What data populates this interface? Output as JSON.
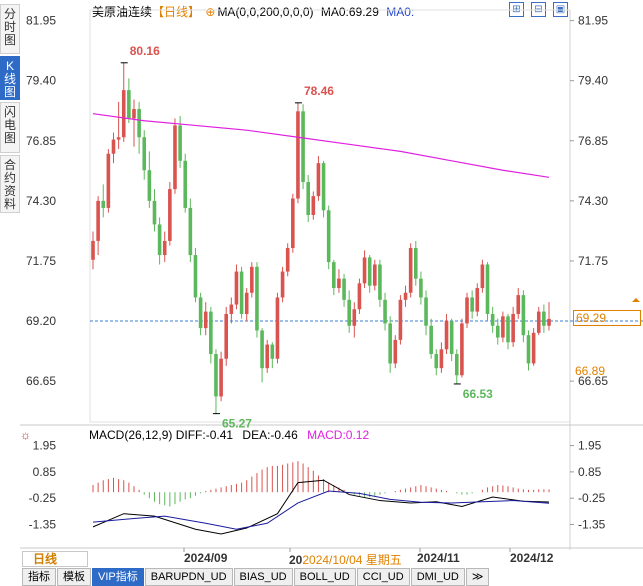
{
  "side_tabs": [
    {
      "label": "分时图",
      "active": false
    },
    {
      "label": "K线图",
      "active": true
    },
    {
      "label": "闪电图",
      "active": false
    },
    {
      "label": "合约资料",
      "active": false
    }
  ],
  "header": {
    "title": "美原油连续",
    "period": "【日线】",
    "ma_label": "MA(0,0,200,0,0,0)",
    "ma_value": "MA0:69.29",
    "ma_value2": "MA0:"
  },
  "header_icons": [
    "zoom-icon",
    "expand-icon",
    "fullscreen-icon",
    "close-icon"
  ],
  "price_axis_ticks": [
    "81.95",
    "79.40",
    "76.85",
    "74.30",
    "71.75",
    "69.20",
    "66.65"
  ],
  "current_price": "69.29",
  "ref_price": "66.89",
  "ref_tick_hidden": "69.20",
  "annotations": {
    "high1": "80.16",
    "high2": "78.46",
    "low1": "65.27",
    "low2": "66.53"
  },
  "macd": {
    "label": "MACD(26,12,9)",
    "diff": "DIFF:-0.41",
    "dea": "DEA:-0.46",
    "macd": "MACD:0.12",
    "ticks": [
      "1.95",
      "0.85",
      "-0.25",
      "-1.35"
    ]
  },
  "date_axis": {
    "labels": [
      "2024/09",
      "2024/11",
      "2024/12"
    ],
    "cursor": "2024/10/04 星期五",
    "cursor_prefix": "20"
  },
  "period_button": "日线",
  "toolbar_tabs": [
    "指标",
    "模板",
    "VIP指标",
    "BARUPDN_UD",
    "BIAS_UD",
    "BOLL_UD",
    "CCI_UD",
    "DMI_UD",
    "≫"
  ],
  "colors": {
    "up": "#d9534f",
    "down": "#5cb85c",
    "ma": "#e020e0",
    "diff": "#000000",
    "dea": "#1a1aa0"
  },
  "chart_data": {
    "type": "candlestick",
    "title": "",
    "xlabel": "",
    "ylabel": "",
    "ylim": [
      65.0,
      82.4
    ],
    "ohlc": [
      [
        71.8,
        73.0,
        71.4,
        72.6
      ],
      [
        72.6,
        74.5,
        72.0,
        74.3
      ],
      [
        74.3,
        75.0,
        73.6,
        74.0
      ],
      [
        74.0,
        76.5,
        73.8,
        76.3
      ],
      [
        76.3,
        77.2,
        75.9,
        76.9
      ],
      [
        76.9,
        78.5,
        76.5,
        77.0
      ],
      [
        77.0,
        80.16,
        76.8,
        79.0
      ],
      [
        79.0,
        79.5,
        77.6,
        77.8
      ],
      [
        77.8,
        78.6,
        76.6,
        78.2
      ],
      [
        78.2,
        78.5,
        76.3,
        77.0
      ],
      [
        77.0,
        77.3,
        75.2,
        75.6
      ],
      [
        75.6,
        76.4,
        74.0,
        74.3
      ],
      [
        74.3,
        74.8,
        73.0,
        73.3
      ],
      [
        73.3,
        73.6,
        71.6,
        72.0
      ],
      [
        72.0,
        73.0,
        71.7,
        72.6
      ],
      [
        72.6,
        75.1,
        72.4,
        74.8
      ],
      [
        74.8,
        77.8,
        74.6,
        77.5
      ],
      [
        77.5,
        77.9,
        75.7,
        76.0
      ],
      [
        76.0,
        76.3,
        73.8,
        74.0
      ],
      [
        74.0,
        74.4,
        71.7,
        72.0
      ],
      [
        72.0,
        72.3,
        70.0,
        70.2
      ],
      [
        70.2,
        70.4,
        68.6,
        68.9
      ],
      [
        68.9,
        70.0,
        68.6,
        69.6
      ],
      [
        69.6,
        69.8,
        67.4,
        67.8
      ],
      [
        67.8,
        68.0,
        65.27,
        66.0
      ],
      [
        66.0,
        67.9,
        65.8,
        67.6
      ],
      [
        67.6,
        69.8,
        67.3,
        69.5
      ],
      [
        69.5,
        70.2,
        69.1,
        69.9
      ],
      [
        69.9,
        71.6,
        69.7,
        71.3
      ],
      [
        71.3,
        71.5,
        69.3,
        69.5
      ],
      [
        69.5,
        70.6,
        69.2,
        70.4
      ],
      [
        70.4,
        71.7,
        70.2,
        71.5
      ],
      [
        71.5,
        71.7,
        68.5,
        68.8
      ],
      [
        68.8,
        68.9,
        66.6,
        67.2
      ],
      [
        67.2,
        68.4,
        67.0,
        68.2
      ],
      [
        68.2,
        68.3,
        67.2,
        67.6
      ],
      [
        67.6,
        70.4,
        67.4,
        70.2
      ],
      [
        70.2,
        71.5,
        70.0,
        71.3
      ],
      [
        71.3,
        72.5,
        71.1,
        72.3
      ],
      [
        72.3,
        74.6,
        72.1,
        74.4
      ],
      [
        74.4,
        78.46,
        74.2,
        78.1
      ],
      [
        78.1,
        78.4,
        74.8,
        75.1
      ],
      [
        75.1,
        75.4,
        73.4,
        73.7
      ],
      [
        73.7,
        74.7,
        73.5,
        74.5
      ],
      [
        74.5,
        76.2,
        74.3,
        75.9
      ],
      [
        75.9,
        76.0,
        73.6,
        73.9
      ],
      [
        73.9,
        74.1,
        71.4,
        71.7
      ],
      [
        71.7,
        71.8,
        70.3,
        70.6
      ],
      [
        70.6,
        71.4,
        70.4,
        71.0
      ],
      [
        71.0,
        71.2,
        69.8,
        70.1
      ],
      [
        70.1,
        70.5,
        68.7,
        69.0
      ],
      [
        69.0,
        70.0,
        68.5,
        69.7
      ],
      [
        69.7,
        71.0,
        69.5,
        70.8
      ],
      [
        70.8,
        72.2,
        70.6,
        71.9
      ],
      [
        71.9,
        72.0,
        70.4,
        70.7
      ],
      [
        70.7,
        71.8,
        70.5,
        71.6
      ],
      [
        71.6,
        71.8,
        69.8,
        70.1
      ],
      [
        70.1,
        70.4,
        68.8,
        69.1
      ],
      [
        69.1,
        69.4,
        67.0,
        67.4
      ],
      [
        67.4,
        68.6,
        67.2,
        68.4
      ],
      [
        68.4,
        70.3,
        68.2,
        70.1
      ],
      [
        70.1,
        70.7,
        69.8,
        70.4
      ],
      [
        70.4,
        72.5,
        70.2,
        72.3
      ],
      [
        72.3,
        72.6,
        70.7,
        71.0
      ],
      [
        71.0,
        71.3,
        69.9,
        70.2
      ],
      [
        70.2,
        70.5,
        68.6,
        69.0
      ],
      [
        69.0,
        69.3,
        67.6,
        67.8
      ],
      [
        67.8,
        68.0,
        66.9,
        67.2
      ],
      [
        67.2,
        68.3,
        67.0,
        68.0
      ],
      [
        68.0,
        69.5,
        67.8,
        69.2
      ],
      [
        69.2,
        69.3,
        67.5,
        67.8
      ],
      [
        67.8,
        68.0,
        66.53,
        66.9
      ],
      [
        66.9,
        69.3,
        66.8,
        69.1
      ],
      [
        69.1,
        70.4,
        68.9,
        70.2
      ],
      [
        70.2,
        70.5,
        69.3,
        69.6
      ],
      [
        69.6,
        70.8,
        69.4,
        70.6
      ],
      [
        70.6,
        71.8,
        70.4,
        71.6
      ],
      [
        71.6,
        71.7,
        69.2,
        69.5
      ],
      [
        69.5,
        69.8,
        68.7,
        69.0
      ],
      [
        69.0,
        69.3,
        68.2,
        68.5
      ],
      [
        68.5,
        69.6,
        68.3,
        69.4
      ],
      [
        69.4,
        69.5,
        68.0,
        68.3
      ],
      [
        68.3,
        69.8,
        68.1,
        69.5
      ],
      [
        69.5,
        70.6,
        69.3,
        70.3
      ],
      [
        70.3,
        70.5,
        68.3,
        68.6
      ],
      [
        68.6,
        68.8,
        67.1,
        67.4
      ],
      [
        67.4,
        68.9,
        67.3,
        68.7
      ],
      [
        68.7,
        69.8,
        68.6,
        69.6
      ],
      [
        69.6,
        69.9,
        68.7,
        69.0
      ],
      [
        69.0,
        70.0,
        68.8,
        69.29
      ]
    ],
    "ma200": [
      [
        0,
        78.0
      ],
      [
        10,
        77.7
      ],
      [
        20,
        77.5
      ],
      [
        30,
        77.3
      ],
      [
        40,
        77.0
      ],
      [
        50,
        76.7
      ],
      [
        60,
        76.4
      ],
      [
        70,
        76.0
      ],
      [
        80,
        75.6
      ],
      [
        89,
        75.3
      ]
    ],
    "macd": {
      "diff": [
        [
          0,
          -1.45
        ],
        [
          6,
          -0.9
        ],
        [
          12,
          -1.0
        ],
        [
          20,
          -1.55
        ],
        [
          25,
          -1.75
        ],
        [
          30,
          -1.5
        ],
        [
          36,
          -0.9
        ],
        [
          40,
          0.4
        ],
        [
          45,
          0.5
        ],
        [
          50,
          -0.1
        ],
        [
          56,
          -0.35
        ],
        [
          62,
          -0.45
        ],
        [
          67,
          -0.4
        ],
        [
          72,
          -0.6
        ],
        [
          78,
          -0.2
        ],
        [
          84,
          -0.38
        ],
        [
          89,
          -0.41
        ]
      ],
      "dea": [
        [
          0,
          -1.25
        ],
        [
          8,
          -1.1
        ],
        [
          14,
          -1.0
        ],
        [
          22,
          -1.3
        ],
        [
          28,
          -1.55
        ],
        [
          34,
          -1.3
        ],
        [
          40,
          -0.45
        ],
        [
          46,
          0.05
        ],
        [
          52,
          -0.05
        ],
        [
          58,
          -0.3
        ],
        [
          64,
          -0.42
        ],
        [
          70,
          -0.45
        ],
        [
          76,
          -0.4
        ],
        [
          82,
          -0.35
        ],
        [
          89,
          -0.46
        ]
      ],
      "hist": [
        0.3,
        0.4,
        0.5,
        0.55,
        0.6,
        0.55,
        0.5,
        0.4,
        0.25,
        0.1,
        -0.1,
        -0.25,
        -0.4,
        -0.5,
        -0.55,
        -0.6,
        -0.5,
        -0.4,
        -0.3,
        -0.25,
        -0.15,
        -0.05,
        0.05,
        0.1,
        0.15,
        0.2,
        0.25,
        0.3,
        0.35,
        0.4,
        0.5,
        0.65,
        0.8,
        0.95,
        1.05,
        1.1,
        1.1,
        1.15,
        1.2,
        1.25,
        1.3,
        1.2,
        1.05,
        0.9,
        0.7,
        0.55,
        0.4,
        0.3,
        0.2,
        0.1,
        0.0,
        -0.1,
        -0.15,
        -0.2,
        -0.2,
        -0.15,
        -0.1,
        -0.05,
        0.0,
        0.05,
        0.1,
        0.15,
        0.2,
        0.25,
        0.3,
        0.25,
        0.2,
        0.15,
        0.1,
        0.05,
        0.0,
        -0.05,
        -0.1,
        -0.1,
        -0.05,
        0.0,
        0.1,
        0.2,
        0.25,
        0.3,
        0.28,
        0.25,
        0.2,
        0.15,
        0.12,
        0.1,
        0.1,
        0.12,
        0.12,
        0.12
      ],
      "ylim": [
        -2.0,
        2.1
      ]
    }
  }
}
